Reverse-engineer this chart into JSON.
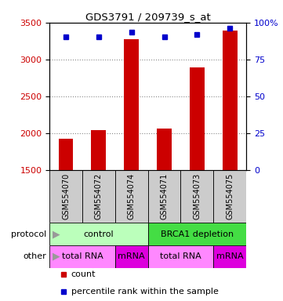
{
  "title": "GDS3791 / 209739_s_at",
  "samples": [
    "GSM554070",
    "GSM554072",
    "GSM554074",
    "GSM554071",
    "GSM554073",
    "GSM554075"
  ],
  "counts": [
    1920,
    2040,
    3270,
    2060,
    2890,
    3390
  ],
  "percentile_values": [
    3310,
    3310,
    3370,
    3310,
    3340,
    3420
  ],
  "ylim_left": [
    1500,
    3500
  ],
  "yticks_left": [
    1500,
    2000,
    2500,
    3000,
    3500
  ],
  "ylim_right": [
    0,
    100
  ],
  "yticks_right": [
    0,
    25,
    50,
    75,
    100
  ],
  "bar_color": "#cc0000",
  "dot_color": "#0000cc",
  "protocol_row": [
    {
      "label": "control",
      "span": [
        0,
        3
      ],
      "color": "#bbffbb"
    },
    {
      "label": "BRCA1 depletion",
      "span": [
        3,
        6
      ],
      "color": "#44dd44"
    }
  ],
  "other_row": [
    {
      "label": "total RNA",
      "span": [
        0,
        2
      ],
      "color": "#ff88ff"
    },
    {
      "label": "mRNA",
      "span": [
        2,
        3
      ],
      "color": "#dd00dd"
    },
    {
      "label": "total RNA",
      "span": [
        3,
        5
      ],
      "color": "#ff88ff"
    },
    {
      "label": "mRNA",
      "span": [
        5,
        6
      ],
      "color": "#dd00dd"
    }
  ],
  "left_label_color": "#cc0000",
  "right_label_color": "#0000cc",
  "grid_color": "#888888",
  "background_color": "#ffffff",
  "label_row_color": "#cccccc"
}
